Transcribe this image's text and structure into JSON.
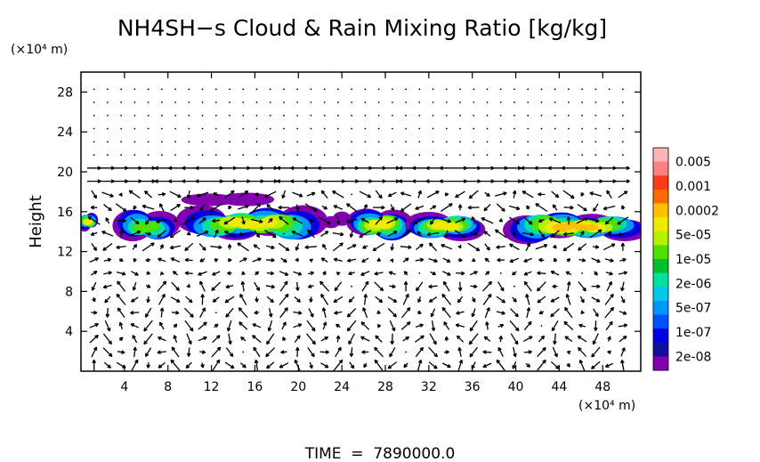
{
  "chart_data": {
    "type": "heatmap",
    "title": "NH4SH−s Cloud & Rain Mixing Ratio [kg/kg]",
    "ylabel": "Height",
    "y_unit": "(×10⁴ m)",
    "x_unit": "(×10⁴ m)",
    "xlim": [
      0,
      51.5
    ],
    "ylim": [
      0,
      30
    ],
    "x_ticks": [
      4,
      8,
      12,
      16,
      20,
      24,
      28,
      32,
      36,
      40,
      44,
      48
    ],
    "y_ticks": [
      4,
      8,
      12,
      16,
      20,
      24,
      28
    ],
    "colorbar": {
      "labels": [
        "0.005",
        "0.001",
        "0.0002",
        "5e-05",
        "1e-05",
        "2e-06",
        "5e-07",
        "1e-07",
        "2e-08"
      ],
      "colors": [
        "#ffb3b3",
        "#ff8080",
        "#ff3a1a",
        "#ff6a00",
        "#ffc000",
        "#f0ea00",
        "#b4f000",
        "#50e000",
        "#00c030",
        "#00e0a0",
        "#00c8e8",
        "#0096ff",
        "#0050ff",
        "#0000e0",
        "#1010a0",
        "#8000b0"
      ]
    },
    "overlay": "wind vectors",
    "cloud_layers": [
      {
        "x": [
          0,
          1.3
        ],
        "y": [
          14.2,
          15.8
        ],
        "peak": "5e-05"
      },
      {
        "x": [
          3.5,
          8.5
        ],
        "y": [
          12.8,
          16.2
        ],
        "peak": "1e-05"
      },
      {
        "x": [
          9.5,
          22
        ],
        "y": [
          13,
          16.6
        ],
        "peak": "5e-05"
      },
      {
        "x": [
          10,
          17
        ],
        "y": [
          16.4,
          18.2
        ],
        "peak": "2e-08"
      },
      {
        "x": [
          22.5,
          24.5
        ],
        "y": [
          14.3,
          15.9
        ],
        "peak": "2e-08"
      },
      {
        "x": [
          25,
          30
        ],
        "y": [
          13.2,
          16.2
        ],
        "peak": "5e-05"
      },
      {
        "x": [
          30.5,
          36.5
        ],
        "y": [
          13.3,
          15.8
        ],
        "peak": "5e-05"
      },
      {
        "x": [
          39.5,
          51.5
        ],
        "y": [
          13,
          16
        ],
        "peak": "0.0002"
      }
    ]
  },
  "footer": {
    "time_label": "TIME  =  7890000.0"
  }
}
